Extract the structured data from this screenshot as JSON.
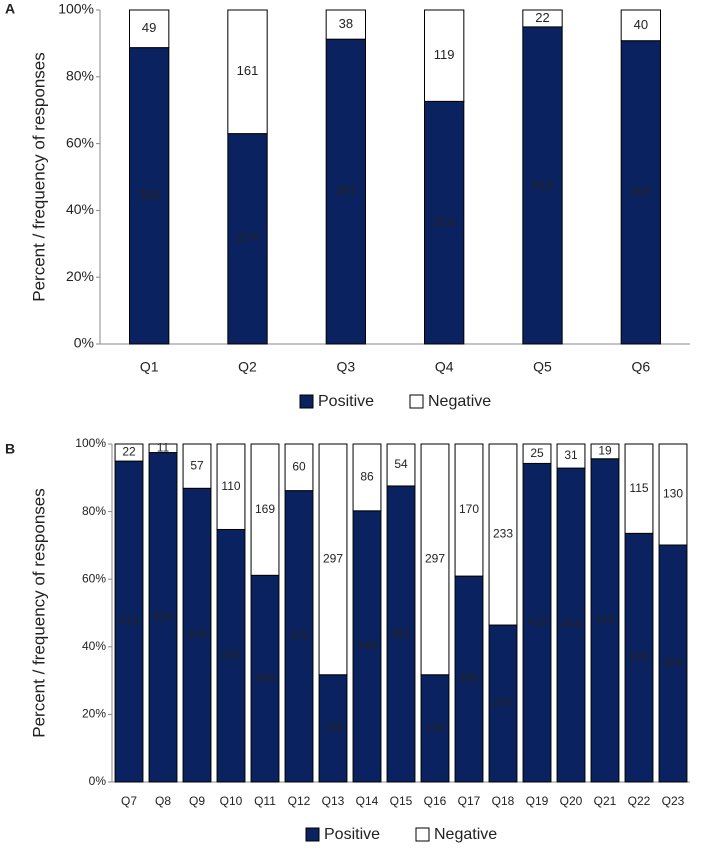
{
  "chart_data": [
    {
      "type": "bar",
      "stacking": "percent",
      "panel": "A",
      "ylabel": "Percent / frequency of responses",
      "categories": [
        "Q1",
        "Q2",
        "Q3",
        "Q4",
        "Q5",
        "Q6"
      ],
      "series": [
        {
          "name": "Positive",
          "color": "#0b2260",
          "values": [
            386,
            274,
            397,
            316,
            413,
            395
          ]
        },
        {
          "name": "Negative",
          "color": "#ffffff",
          "values": [
            49,
            161,
            38,
            119,
            22,
            40
          ]
        }
      ],
      "ylim": [
        0,
        100
      ],
      "yticks": [
        {
          "value": 0,
          "label": "0%"
        },
        {
          "value": 20,
          "label": "20%"
        },
        {
          "value": 40,
          "label": "40%"
        },
        {
          "value": 60,
          "label": "60%"
        },
        {
          "value": 80,
          "label": "80%"
        },
        {
          "value": 100,
          "label": "100%"
        }
      ],
      "legend": "bottom"
    },
    {
      "type": "bar",
      "stacking": "percent",
      "panel": "B",
      "ylabel": "Percent / frequency of responses",
      "categories": [
        "Q7",
        "Q8",
        "Q9",
        "Q10",
        "Q11",
        "Q12",
        "Q13",
        "Q14",
        "Q15",
        "Q16",
        "Q17",
        "Q18",
        "Q19",
        "Q20",
        "Q21",
        "Q22",
        "Q23"
      ],
      "series": [
        {
          "name": "Positive",
          "color": "#0b2260",
          "values": [
            413,
            424,
            378,
            325,
            266,
            375,
            138,
            349,
            381,
            138,
            265,
            202,
            410,
            404,
            416,
            320,
            305
          ]
        },
        {
          "name": "Negative",
          "color": "#ffffff",
          "values": [
            22,
            11,
            57,
            110,
            169,
            60,
            297,
            86,
            54,
            297,
            170,
            233,
            25,
            31,
            19,
            115,
            130
          ]
        }
      ],
      "ylim": [
        0,
        100
      ],
      "yticks": [
        {
          "value": 0,
          "label": "0%"
        },
        {
          "value": 20,
          "label": "20%"
        },
        {
          "value": 40,
          "label": "40%"
        },
        {
          "value": 60,
          "label": "60%"
        },
        {
          "value": 80,
          "label": "80%"
        },
        {
          "value": 100,
          "label": "100%"
        }
      ],
      "legend": "bottom"
    }
  ]
}
